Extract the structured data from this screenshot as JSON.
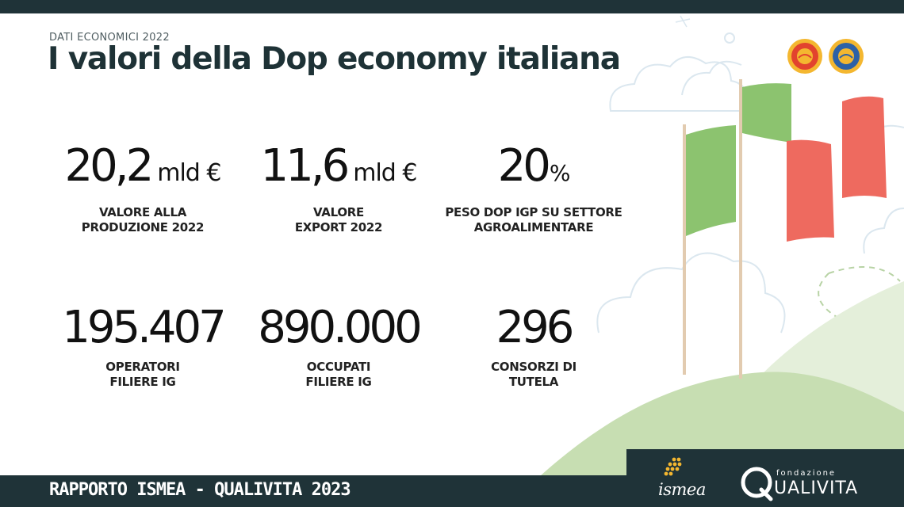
{
  "header": {
    "kicker": "DATI ECONOMICI 2022",
    "title": "I valori della Dop economy italiana"
  },
  "stats": [
    {
      "value": "20,2",
      "unit": "mld €",
      "label_1": "VALORE ALLA",
      "label_2": "PRODUZIONE 2022"
    },
    {
      "value": "11,6",
      "unit": "mld €",
      "label_1": "VALORE",
      "label_2": "EXPORT 2022"
    },
    {
      "value": "20",
      "unit": "%",
      "label_1": "PESO DOP IGP SU SETTORE",
      "label_2": "AGROALIMENTARE"
    },
    {
      "value": "195.407",
      "unit": "",
      "label_1": "OPERATORI",
      "label_2": "FILIERE IG"
    },
    {
      "value": "890.000",
      "unit": "",
      "label_1": "OCCUPATI",
      "label_2": "FILIERE IG"
    },
    {
      "value": "296",
      "unit": "",
      "label_1": "CONSORZI DI",
      "label_2": "TUTELA"
    }
  ],
  "footer": {
    "text": "RAPPORTO ISMEA - QUALIVITA 2023",
    "ismea_logo_text": "ismea",
    "qualivita_small": "fondazione",
    "qualivita_big": "UALIVITA"
  },
  "colors": {
    "dark": "#1f3338",
    "flag_green": "#8cc36f",
    "flag_red": "#ee6a5f",
    "hill_light": "#e3efd9",
    "hill_mid": "#c8dfb4",
    "cloud_line": "#d9e6ee"
  },
  "icons": [
    "dop-seal-icon",
    "igp-seal-icon",
    "ismea-logo-icon",
    "qualivita-logo-icon",
    "italian-flag-icon",
    "cloud-icon"
  ]
}
